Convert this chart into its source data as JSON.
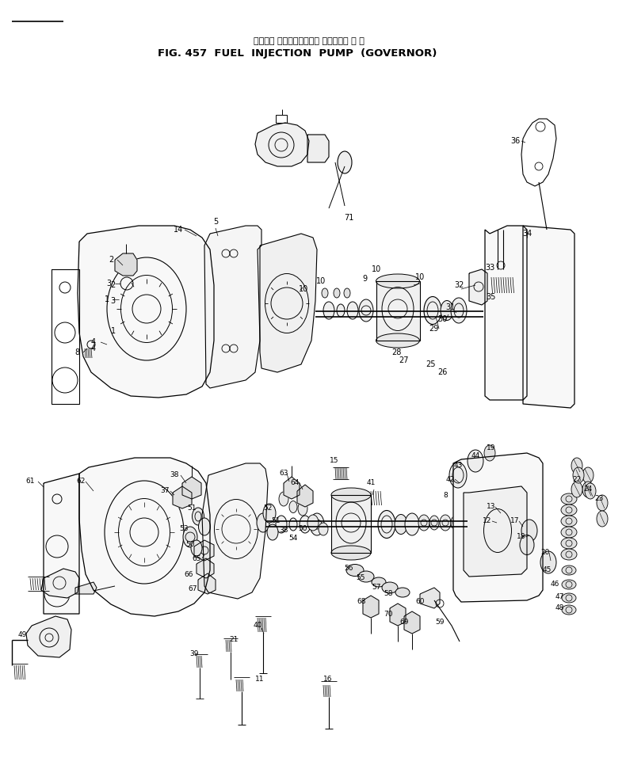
{
  "title_japanese": "フェエル インジェクション ポンプ　ガ バ ナ",
  "title_english": "FIG. 457  FUEL  INJECTION  PUMP  (GOVERNOR)",
  "bg_color": "#ffffff",
  "lc": "#000000",
  "fig_width": 7.9,
  "fig_height": 9.76,
  "dpi": 100
}
